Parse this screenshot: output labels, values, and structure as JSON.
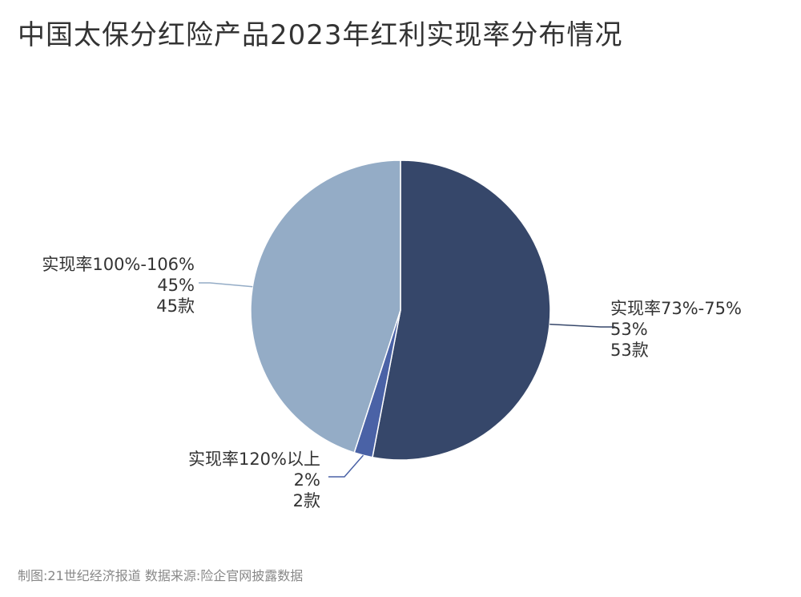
{
  "title": "中国太保分红险产品2023年红利实现率分布情况",
  "source": "制图:21世纪经济报道 数据来源:险企官网披露数据",
  "chart_data": {
    "type": "pie",
    "title": "中国太保分红险产品2023年红利实现率分布情况",
    "start_angle_deg": 0,
    "direction": "clockwise",
    "slices": [
      {
        "label": "实现率73%-75%",
        "percent_label": "53%",
        "count_label": "53款",
        "value": 53,
        "color": "#36476a"
      },
      {
        "label": "实现率120%以上",
        "percent_label": "2%",
        "count_label": "2款",
        "value": 2,
        "color": "#4a62a6"
      },
      {
        "label": "实现率100%-106%",
        "percent_label": "45%",
        "count_label": "45款",
        "value": 45,
        "color": "#94acc6"
      }
    ]
  }
}
